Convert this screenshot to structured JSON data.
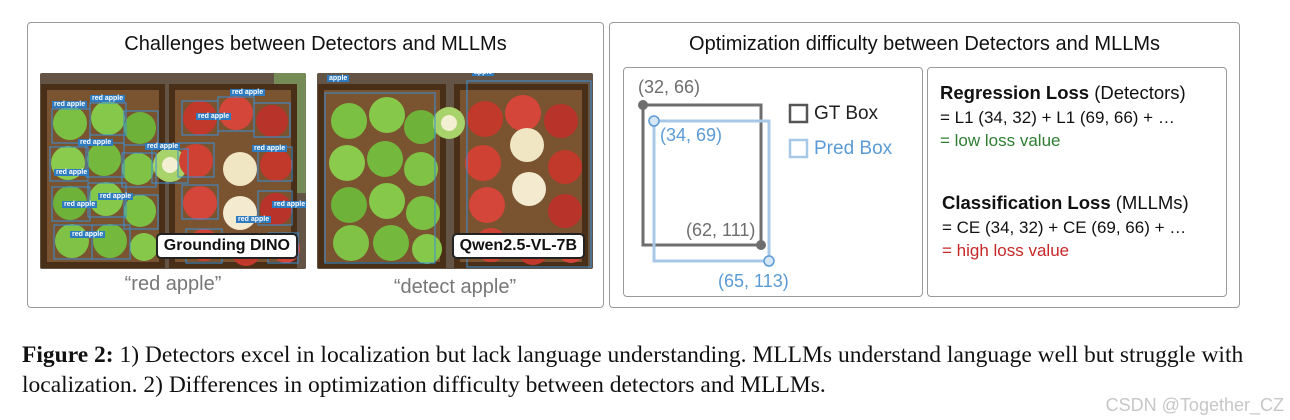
{
  "left_panel": {
    "title": "Challenges between Detectors and MLLMs",
    "detector": {
      "badge": "Grounding DINO",
      "prompt": "“red apple”",
      "box_label": "red apple"
    },
    "mllm": {
      "badge": "Qwen2.5-VL-7B",
      "prompt": "“detect apple”",
      "box_label": "apple"
    }
  },
  "right_panel": {
    "title": "Optimization difficulty between Detectors and MLLMs",
    "diagram": {
      "gt_top_left": "(32, 66)",
      "gt_bottom_right": "(62, 111)",
      "pred_top_left": "(34, 69)",
      "pred_bottom_right": "(65, 113)",
      "legend_gt": "GT Box",
      "legend_pred": "Pred Box"
    },
    "regression": {
      "title": "Regression Loss",
      "suffix": " (Detectors)",
      "formula": "= L1 (34, 32) + L1 (69, 66) + …",
      "result": "= low loss value"
    },
    "classification": {
      "title": "Classification Loss",
      "suffix": " (MLLMs)",
      "formula": "= CE (34, 32) + CE  (69, 66) + …",
      "result": "= high loss value"
    }
  },
  "colors": {
    "gt_box": "#6e6e6e",
    "pred_box": "#a8c8e8",
    "pred_text": "#5b9bd5",
    "low_loss": "#2e7d32",
    "high_loss": "#c62828",
    "panel_border": "#9a9a9a"
  },
  "caption": {
    "label": "Figure 2:",
    "text": " 1) Detectors excel in localization but lack language understanding. MLLMs understand language well but struggle with localization. 2) Differences in optimization difficulty between detectors and MLLMs."
  },
  "watermark": "CSDN @Together_CZ"
}
